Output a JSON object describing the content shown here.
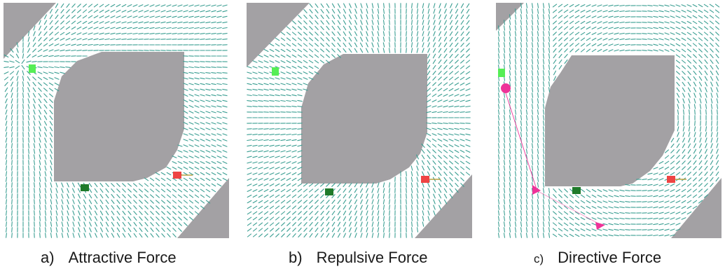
{
  "panels": [
    {
      "id": "a",
      "letter": "a)",
      "label": "Attractive Force",
      "field": "attractive"
    },
    {
      "id": "b",
      "letter": "b)",
      "label": "Repulsive Force",
      "field": "repulsive"
    },
    {
      "id": "c",
      "letter": "c)",
      "label": "Directive Force",
      "field": "directive"
    }
  ],
  "colors": {
    "vector": "#3a9e92",
    "obstacle": "#a3a1a4",
    "goal_light": "#55ee55",
    "goal_dark": "#1f7a2a",
    "robot": "#ee4444",
    "robot_heading": "#b8a040",
    "waypoint": "#ee3399"
  }
}
